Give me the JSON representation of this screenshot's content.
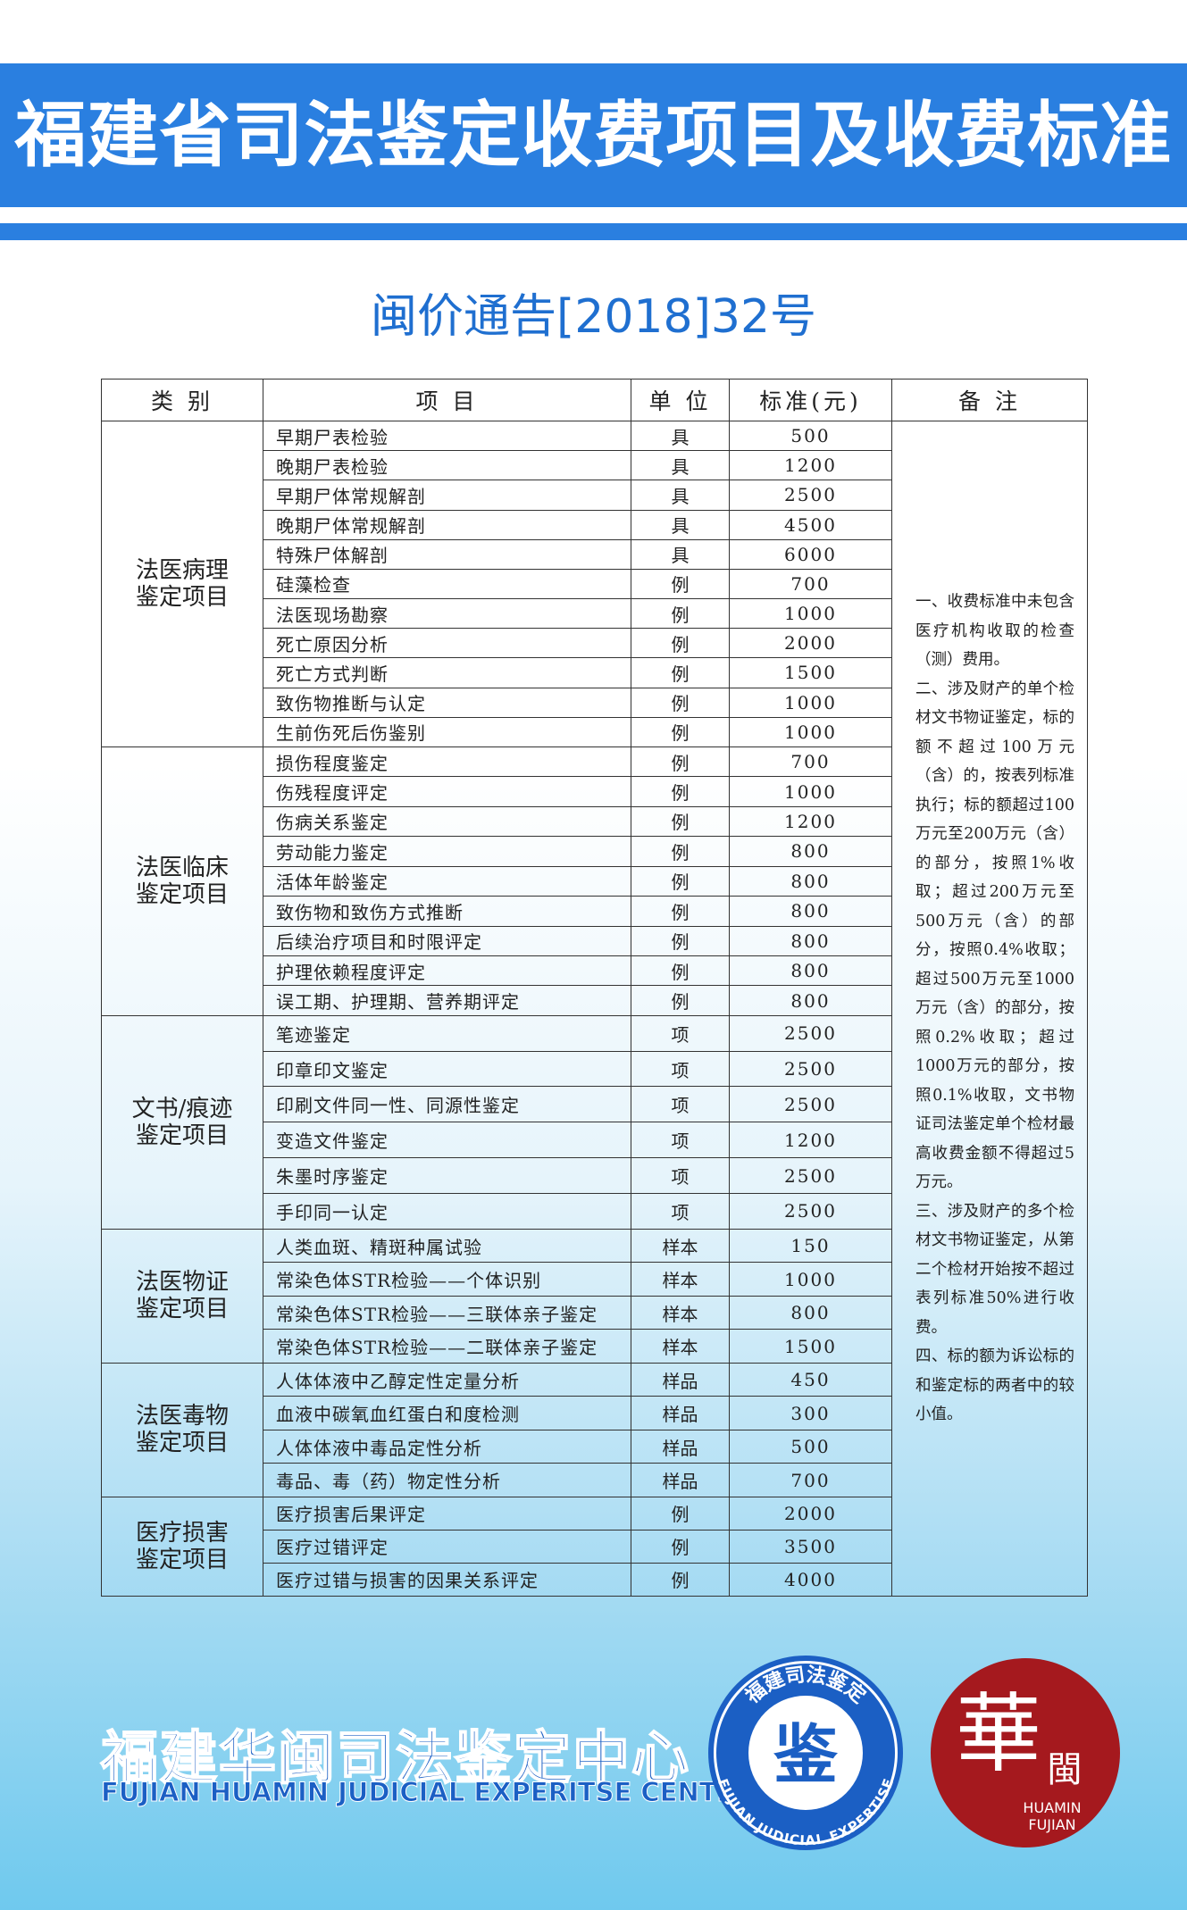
{
  "header": {
    "title": "福建省司法鉴定收费项目及收费标准"
  },
  "notice": "闽价通告[2018]32号",
  "table": {
    "columns": [
      "类 别",
      "项 目",
      "单 位",
      "标准(元)",
      "备 注"
    ],
    "groups": [
      {
        "category": [
          "法医病理",
          "鉴定项目"
        ],
        "rows": [
          [
            "早期尸表检验",
            "具",
            500
          ],
          [
            "晚期尸表检验",
            "具",
            1200
          ],
          [
            "早期尸体常规解剖",
            "具",
            2500
          ],
          [
            "晚期尸体常规解剖",
            "具",
            4500
          ],
          [
            "特殊尸体解剖",
            "具",
            6000
          ],
          [
            "硅藻检查",
            "例",
            700
          ],
          [
            "法医现场勘察",
            "例",
            1000
          ],
          [
            "死亡原因分析",
            "例",
            2000
          ],
          [
            "死亡方式判断",
            "例",
            1500
          ],
          [
            "致伤物推断与认定",
            "例",
            1000
          ],
          [
            "生前伤死后伤鉴别",
            "例",
            1000
          ]
        ]
      },
      {
        "category": [
          "法医临床",
          "鉴定项目"
        ],
        "rows": [
          [
            "损伤程度鉴定",
            "例",
            700
          ],
          [
            "伤残程度评定",
            "例",
            1000
          ],
          [
            "伤病关系鉴定",
            "例",
            1200
          ],
          [
            "劳动能力鉴定",
            "例",
            800
          ],
          [
            "活体年龄鉴定",
            "例",
            800
          ],
          [
            "致伤物和致伤方式推断",
            "例",
            800
          ],
          [
            "后续治疗项目和时限评定",
            "例",
            800
          ],
          [
            "护理依赖程度评定",
            "例",
            800
          ],
          [
            "误工期、护理期、营养期评定",
            "例",
            800
          ]
        ]
      },
      {
        "category": [
          "文书/痕迹",
          "鉴定项目"
        ],
        "rows": [
          [
            "笔迹鉴定",
            "项",
            2500
          ],
          [
            "印章印文鉴定",
            "项",
            2500
          ],
          [
            "印刷文件同一性、同源性鉴定",
            "项",
            2500
          ],
          [
            "变造文件鉴定",
            "项",
            1200
          ],
          [
            "朱墨时序鉴定",
            "项",
            2500
          ],
          [
            "手印同一认定",
            "项",
            2500
          ]
        ]
      },
      {
        "category": [
          "法医物证",
          "鉴定项目"
        ],
        "rows": [
          [
            "人类血斑、精斑种属试验",
            "样本",
            150
          ],
          [
            "常染色体STR检验——个体识别",
            "样本",
            1000
          ],
          [
            "常染色体STR检验——三联体亲子鉴定",
            "样本",
            800
          ],
          [
            "常染色体STR检验——二联体亲子鉴定",
            "样本",
            1500
          ]
        ]
      },
      {
        "category": [
          "法医毒物",
          "鉴定项目"
        ],
        "rows": [
          [
            "人体体液中乙醇定性定量分析",
            "样品",
            450
          ],
          [
            "血液中碳氧血红蛋白和度检测",
            "样品",
            300
          ],
          [
            "人体体液中毒品定性分析",
            "样品",
            500
          ],
          [
            "毒品、毒（药）物定性分析",
            "样品",
            700
          ]
        ]
      },
      {
        "category": [
          "医疗损害",
          "鉴定项目"
        ],
        "rows": [
          [
            "医疗损害后果评定",
            "例",
            2000
          ],
          [
            "医疗过错评定",
            "例",
            3500
          ],
          [
            "医疗过错与损害的因果关系评定",
            "例",
            4000
          ]
        ]
      }
    ],
    "notes": [
      "一、收费标准中未包含医疗机构收取的检查（测）费用。",
      "二、涉及财产的单个检材文书物证鉴定，标的额不超过100万元（含）的，按表列标准执行；标的额超过100万元至200万元（含）的部分，按照1%收取；超过200万元至500万元（含）的部分，按照0.4%收取；超过500万元至1000万元（含）的部分，按照0.2%收取；超过1000万元的部分，按照0.1%收取，文书物证司法鉴定单个检材最高收费金额不得超过5万元。",
      "三、涉及财产的多个检材文书物证鉴定，从第二个检材开始按不超过表列标准50%进行收费。",
      "四、标的额为诉讼标的和鉴定标的两者中的较小值。"
    ]
  },
  "footer": {
    "name": "福建华闽司法鉴定中心",
    "name_en": "FUJIAN HUAMIN JUDICIAL EXPERITSE CENTER",
    "logo1": {
      "ring": "福建司法鉴定",
      "ring_en": "FUJIAN JUDICIAL EXPERTISE",
      "center": "鉴"
    },
    "logo2": {
      "char": "華",
      "char2": "閩",
      "en1": "HUAMIN",
      "en2": "FUJIAN"
    }
  }
}
